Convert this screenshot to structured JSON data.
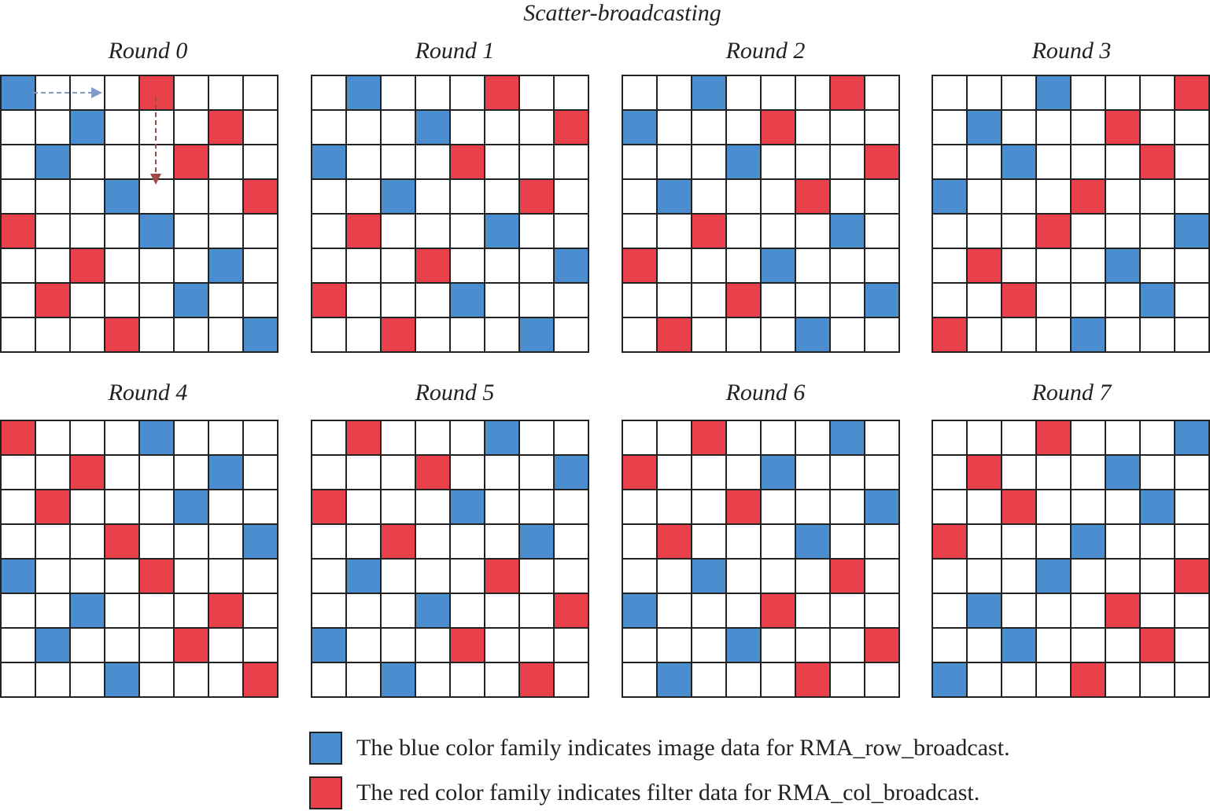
{
  "title": "Scatter-broadcasting",
  "colors": {
    "blue": "#4a8ed0",
    "red": "#e8414c",
    "grid": "#222222",
    "arrow_blue": "#7f9cc8",
    "arrow_red": "#a24a4a"
  },
  "rounds": [
    {
      "label": "Round 0",
      "blue": [
        [
          0,
          0
        ],
        [
          1,
          2
        ],
        [
          2,
          1
        ],
        [
          3,
          3
        ],
        [
          4,
          4
        ],
        [
          5,
          6
        ],
        [
          6,
          5
        ],
        [
          7,
          7
        ]
      ],
      "red": [
        [
          0,
          4
        ],
        [
          1,
          6
        ],
        [
          2,
          5
        ],
        [
          3,
          7
        ],
        [
          4,
          0
        ],
        [
          5,
          2
        ],
        [
          6,
          1
        ],
        [
          7,
          3
        ]
      ]
    },
    {
      "label": "Round 1",
      "blue": [
        [
          0,
          1
        ],
        [
          1,
          3
        ],
        [
          2,
          0
        ],
        [
          3,
          2
        ],
        [
          4,
          5
        ],
        [
          5,
          7
        ],
        [
          6,
          4
        ],
        [
          7,
          6
        ]
      ],
      "red": [
        [
          0,
          5
        ],
        [
          1,
          7
        ],
        [
          2,
          4
        ],
        [
          3,
          6
        ],
        [
          4,
          1
        ],
        [
          5,
          3
        ],
        [
          6,
          0
        ],
        [
          7,
          2
        ]
      ]
    },
    {
      "label": "Round 2",
      "blue": [
        [
          0,
          2
        ],
        [
          1,
          0
        ],
        [
          2,
          3
        ],
        [
          3,
          1
        ],
        [
          4,
          6
        ],
        [
          5,
          4
        ],
        [
          6,
          7
        ],
        [
          7,
          5
        ]
      ],
      "red": [
        [
          0,
          6
        ],
        [
          1,
          4
        ],
        [
          2,
          7
        ],
        [
          3,
          5
        ],
        [
          4,
          2
        ],
        [
          5,
          0
        ],
        [
          6,
          3
        ],
        [
          7,
          1
        ]
      ]
    },
    {
      "label": "Round 3",
      "blue": [
        [
          0,
          3
        ],
        [
          1,
          1
        ],
        [
          2,
          2
        ],
        [
          3,
          0
        ],
        [
          4,
          7
        ],
        [
          5,
          5
        ],
        [
          6,
          6
        ],
        [
          7,
          4
        ]
      ],
      "red": [
        [
          0,
          7
        ],
        [
          1,
          5
        ],
        [
          2,
          6
        ],
        [
          3,
          4
        ],
        [
          4,
          3
        ],
        [
          5,
          1
        ],
        [
          6,
          2
        ],
        [
          7,
          0
        ]
      ]
    },
    {
      "label": "Round 4",
      "blue": [
        [
          0,
          4
        ],
        [
          1,
          6
        ],
        [
          2,
          5
        ],
        [
          3,
          7
        ],
        [
          4,
          0
        ],
        [
          5,
          2
        ],
        [
          6,
          1
        ],
        [
          7,
          3
        ]
      ],
      "red": [
        [
          0,
          0
        ],
        [
          1,
          2
        ],
        [
          2,
          1
        ],
        [
          3,
          3
        ],
        [
          4,
          4
        ],
        [
          5,
          6
        ],
        [
          6,
          5
        ],
        [
          7,
          7
        ]
      ]
    },
    {
      "label": "Round 5",
      "blue": [
        [
          0,
          5
        ],
        [
          1,
          7
        ],
        [
          2,
          4
        ],
        [
          3,
          6
        ],
        [
          4,
          1
        ],
        [
          5,
          3
        ],
        [
          6,
          0
        ],
        [
          7,
          2
        ]
      ],
      "red": [
        [
          0,
          1
        ],
        [
          1,
          3
        ],
        [
          2,
          0
        ],
        [
          3,
          2
        ],
        [
          4,
          5
        ],
        [
          5,
          7
        ],
        [
          6,
          4
        ],
        [
          7,
          6
        ]
      ]
    },
    {
      "label": "Round 6",
      "blue": [
        [
          0,
          6
        ],
        [
          1,
          4
        ],
        [
          2,
          7
        ],
        [
          3,
          5
        ],
        [
          4,
          2
        ],
        [
          5,
          0
        ],
        [
          6,
          3
        ],
        [
          7,
          1
        ]
      ],
      "red": [
        [
          0,
          2
        ],
        [
          1,
          0
        ],
        [
          2,
          3
        ],
        [
          3,
          1
        ],
        [
          4,
          6
        ],
        [
          5,
          4
        ],
        [
          6,
          7
        ],
        [
          7,
          5
        ]
      ]
    },
    {
      "label": "Round 7",
      "blue": [
        [
          0,
          7
        ],
        [
          1,
          5
        ],
        [
          2,
          6
        ],
        [
          3,
          4
        ],
        [
          4,
          3
        ],
        [
          5,
          1
        ],
        [
          6,
          2
        ],
        [
          7,
          0
        ]
      ],
      "red": [
        [
          0,
          3
        ],
        [
          1,
          1
        ],
        [
          2,
          2
        ],
        [
          3,
          0
        ],
        [
          4,
          7
        ],
        [
          5,
          5
        ],
        [
          6,
          6
        ],
        [
          7,
          4
        ]
      ]
    }
  ],
  "legend": [
    {
      "color": "blue",
      "text": "The blue color family indicates image data for RMA_row_broadcast."
    },
    {
      "color": "red",
      "text": "The red color family indicates filter data for RMA_col_broadcast."
    }
  ]
}
